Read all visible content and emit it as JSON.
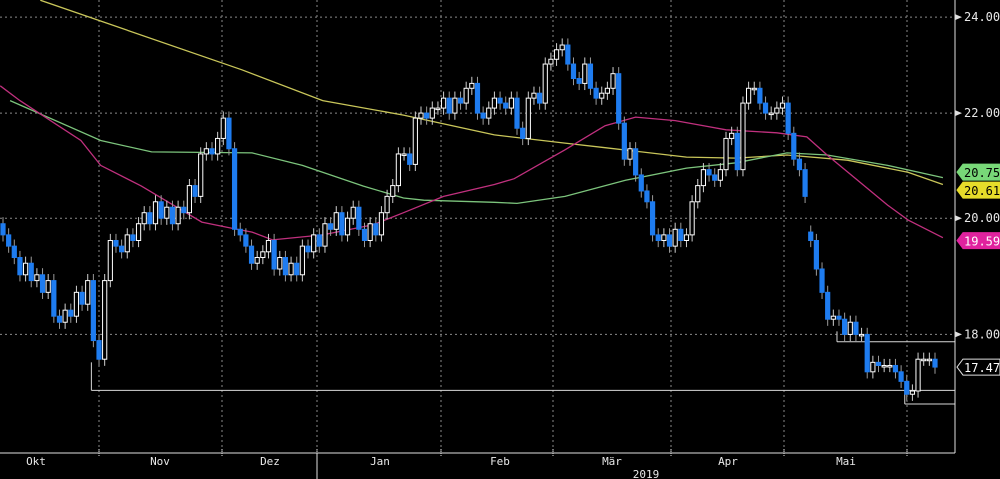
{
  "chart_data": {
    "type": "candlestick",
    "title": "",
    "y_scale": "log",
    "ylim": [
      16.6,
      24.4
    ],
    "y_ticks": [
      "24.00",
      "22.00",
      "20.00",
      "18.00"
    ],
    "y_tick_values": [
      24,
      22,
      20,
      18
    ],
    "x_month_labels": [
      "Okt",
      "Nov",
      "Dez",
      "Jan",
      "Feb",
      "Mär",
      "Apr",
      "Mai"
    ],
    "x_year_label": "2019",
    "colors": {
      "up": "#ffffff",
      "down": "#1e7cf0",
      "ma_yellow": "#c9c65a",
      "ma_green": "#7cc47c",
      "ma_magenta": "#c0307e",
      "grid": "#8a8a8a"
    },
    "closes": [
      19.7,
      19.5,
      19.3,
      19.0,
      19.2,
      18.9,
      19.0,
      18.7,
      18.9,
      18.3,
      18.2,
      18.4,
      18.3,
      18.7,
      18.5,
      18.9,
      17.9,
      17.6,
      18.9,
      19.6,
      19.5,
      19.4,
      19.7,
      19.6,
      19.9,
      20.1,
      19.9,
      20.3,
      20.0,
      20.2,
      19.9,
      20.2,
      20.1,
      20.6,
      20.4,
      21.2,
      21.3,
      21.2,
      21.5,
      21.9,
      21.3,
      19.8,
      19.7,
      19.5,
      19.2,
      19.3,
      19.4,
      19.6,
      19.1,
      19.3,
      19.0,
      19.2,
      19.0,
      19.5,
      19.4,
      19.7,
      19.5,
      19.9,
      19.8,
      20.1,
      19.7,
      20.0,
      20.2,
      19.8,
      19.6,
      19.9,
      19.7,
      20.1,
      20.4,
      20.6,
      21.2,
      21.2,
      21.0,
      21.9,
      22.0,
      21.9,
      22.1,
      22.1,
      22.3,
      22.0,
      22.3,
      22.2,
      22.5,
      22.6,
      22.0,
      21.9,
      22.1,
      22.3,
      22.2,
      22.1,
      22.3,
      21.7,
      21.5,
      22.3,
      22.4,
      22.2,
      23.0,
      23.1,
      23.3,
      23.4,
      23.0,
      22.7,
      22.6,
      23.0,
      22.5,
      22.3,
      22.4,
      22.5,
      22.8,
      21.8,
      21.1,
      21.3,
      20.8,
      20.5,
      20.3,
      19.7,
      19.6,
      19.7,
      19.5,
      19.8,
      19.6,
      19.7,
      20.3,
      20.6,
      20.9,
      20.8,
      20.7,
      20.9,
      21.5,
      21.6,
      20.9,
      22.2,
      22.5,
      22.5,
      22.2,
      22.0,
      22.0,
      22.1,
      22.2,
      21.6,
      21.1,
      20.9,
      20.4,
      19.6,
      19.1,
      18.7,
      18.25,
      18.3,
      18.25,
      18.0,
      18.2,
      18.0,
      18.0,
      17.4,
      17.55,
      17.5,
      17.5,
      17.5,
      17.4,
      17.25,
      17.05,
      17.1,
      17.6,
      17.6,
      17.6,
      17.475
    ],
    "first_open": 19.9,
    "open_overrides": {
      "143": 19.75
    },
    "moving_averages": [
      {
        "name": "ma_yellow",
        "last_label": "20.617",
        "points": [
          [
            6.6,
            24.37
          ],
          [
            42.3,
            22.88
          ],
          [
            56.6,
            22.25
          ],
          [
            70.9,
            21.96
          ],
          [
            87,
            21.57
          ],
          [
            99.5,
            21.41
          ],
          [
            106.6,
            21.32
          ],
          [
            121,
            21.14
          ],
          [
            129.8,
            21.12
          ],
          [
            138.8,
            21.18
          ],
          [
            149.5,
            21.08
          ],
          [
            160.2,
            20.85
          ],
          [
            166.4,
            20.62
          ]
        ]
      },
      {
        "name": "ma_green",
        "last_label": "20.753",
        "points": [
          [
            1.25,
            22.25
          ],
          [
            17.3,
            21.46
          ],
          [
            26.3,
            21.24
          ],
          [
            44.1,
            21.22
          ],
          [
            53,
            20.98
          ],
          [
            63.8,
            20.59
          ],
          [
            70.9,
            20.37
          ],
          [
            74.5,
            20.33
          ],
          [
            87,
            20.29
          ],
          [
            91,
            20.27
          ],
          [
            99.5,
            20.4
          ],
          [
            110.2,
            20.7
          ],
          [
            121,
            20.93
          ],
          [
            129.8,
            21.03
          ],
          [
            138.8,
            21.22
          ],
          [
            145.9,
            21.18
          ],
          [
            156.6,
            20.98
          ],
          [
            166.4,
            20.75
          ]
        ]
      },
      {
        "name": "ma_magenta",
        "last_label": "19.598",
        "points": [
          [
            -0.5,
            22.55
          ],
          [
            3,
            22.25
          ],
          [
            13.8,
            21.46
          ],
          [
            17.3,
            20.98
          ],
          [
            24.5,
            20.59
          ],
          [
            35.2,
            19.93
          ],
          [
            40.5,
            19.82
          ],
          [
            44.1,
            19.75
          ],
          [
            47.7,
            19.61
          ],
          [
            56.6,
            19.7
          ],
          [
            65.5,
            19.88
          ],
          [
            70.9,
            20.1
          ],
          [
            78,
            20.4
          ],
          [
            87,
            20.62
          ],
          [
            90.5,
            20.73
          ],
          [
            99.5,
            21.28
          ],
          [
            106.6,
            21.75
          ],
          [
            112,
            21.92
          ],
          [
            119,
            21.85
          ],
          [
            128,
            21.67
          ],
          [
            137,
            21.61
          ],
          [
            142.3,
            21.53
          ],
          [
            145.9,
            21.18
          ],
          [
            151.3,
            20.7
          ],
          [
            156.6,
            20.24
          ],
          [
            160.2,
            19.97
          ],
          [
            166.4,
            19.65
          ]
        ]
      }
    ],
    "last_price_label": "17.475 L",
    "levels": [
      {
        "price": 17.11,
        "from_index": 16,
        "from_price": 17.55
      },
      {
        "price": 17.88,
        "from_index": 148,
        "from_price": 18.05
      },
      {
        "price": 16.9,
        "from_index": 160,
        "from_price": 17.11
      }
    ]
  }
}
